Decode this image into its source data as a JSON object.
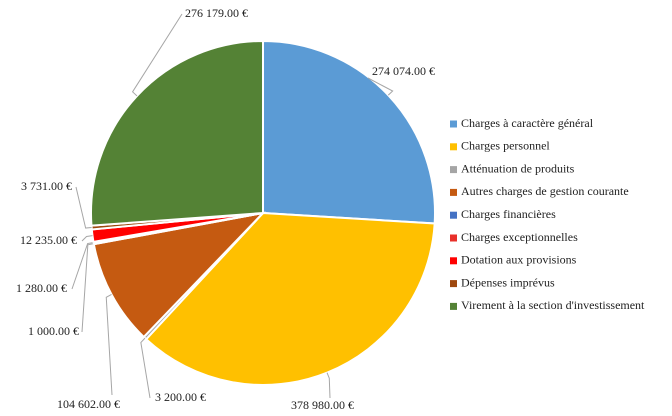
{
  "chart_data": {
    "type": "pie",
    "categories": [
      "Charges à caractère général",
      "Charges personnel",
      "Atténuation de produits",
      "Autres charges de gestion courante",
      "Charges financières",
      "Charges exceptionnelles",
      "Dotation aux provisions",
      "Dépenses imprévus",
      "Virement à la section d'investissement"
    ],
    "values": [
      274074,
      378980,
      3200,
      104602,
      1000,
      1280,
      12235,
      3731,
      276179
    ],
    "value_labels": [
      "274 074.00 €",
      "378 980.00 €",
      "3 200.00 €",
      "104 602.00 €",
      "1 000.00 €",
      "1 280.00 €",
      "12 235.00 €",
      "3 731.00 €",
      "276 179.00 €"
    ],
    "colors": [
      "#5b9bd5",
      "#ffc000",
      "#a5a5a5",
      "#c55a11",
      "#4472c4",
      "#e8302a",
      "#ff0000",
      "#9e480e",
      "#548235"
    ],
    "legend": "right"
  }
}
